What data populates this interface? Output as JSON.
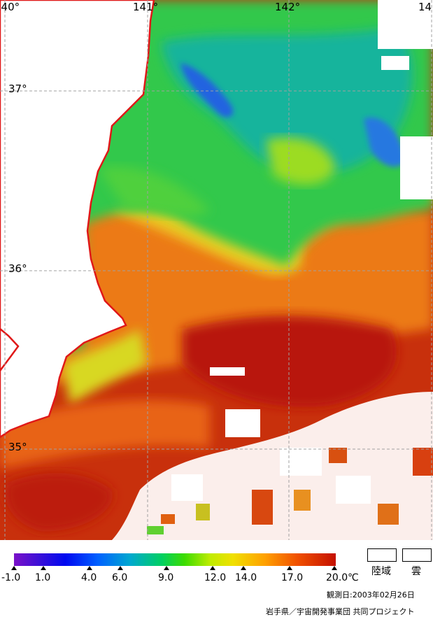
{
  "map": {
    "lon_labels": [
      {
        "text": "140°"
      },
      {
        "text": "141°"
      },
      {
        "text": "142°"
      },
      {
        "text": "14"
      }
    ],
    "lat_labels": [
      {
        "text": "37°"
      },
      {
        "text": "36°"
      },
      {
        "text": "35°"
      }
    ]
  },
  "colorbar": {
    "ticks": [
      "-1.0",
      "1.0",
      "4.0",
      "6.0",
      "9.0",
      "12.0",
      "14.0",
      "17.0",
      "20.0"
    ],
    "unit": "℃",
    "stops": [
      "#7a10c8",
      "#3a10d8",
      "#0008f0",
      "#0060ff",
      "#00a8d0",
      "#00d060",
      "#3cdc00",
      "#c0ec00",
      "#f0e000",
      "#ffa000",
      "#f05000",
      "#c41000"
    ]
  },
  "legend": {
    "land_label": "陸域",
    "cloud_label": "雲"
  },
  "observation_date": "観測日:2003年02月26日",
  "credit": "岩手県／宇宙開発事業団 共同プロジェクト",
  "colors": {
    "coastline": "#e01818",
    "land": "#ffffff",
    "cloud": "#ffffff",
    "cold_blue": "#2060e8",
    "teal": "#18b4a0",
    "green": "#30c850",
    "yellow_green": "#a8e020",
    "orange": "#f09020",
    "red": "#c82010"
  }
}
